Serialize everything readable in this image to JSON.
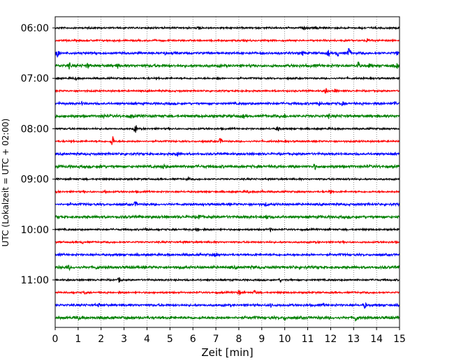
{
  "chart_data": {
    "type": "line",
    "title": "",
    "xlabel": "Zeit  [min]",
    "ylabel": "UTC (Lokalzeit = UTC + 02:00)",
    "xlim": [
      0,
      15
    ],
    "x_ticks": [
      0,
      1,
      2,
      3,
      4,
      5,
      6,
      7,
      8,
      9,
      10,
      11,
      12,
      13,
      14,
      15
    ],
    "x_tick_labels": [
      "0",
      "1",
      "2",
      "3",
      "4",
      "5",
      "6",
      "7",
      "8",
      "9",
      "10",
      "11",
      "12",
      "13",
      "14",
      "15"
    ],
    "y_tick_labels": [
      "06:00",
      "07:00",
      "08:00",
      "09:00",
      "10:00",
      "11:00"
    ],
    "vertical_grid": true,
    "grid_style": "dotted",
    "trace_interval_minutes": 15,
    "trace_colors": [
      "#000000",
      "#ff0000",
      "#0000ff",
      "#008000"
    ],
    "traces": [
      {
        "start": "06:00",
        "color": "#000000",
        "events": [
          [
            6.3,
            0.7
          ],
          [
            10.9,
            0.6
          ],
          [
            11.4,
            0.6
          ],
          [
            13.3,
            0.5
          ]
        ]
      },
      {
        "start": "06:15",
        "color": "#ff0000",
        "events": [
          [
            13.6,
            0.7
          ]
        ]
      },
      {
        "start": "06:30",
        "color": "#0000ff",
        "events": [
          [
            0.1,
            2.0
          ],
          [
            4.8,
            0.7
          ],
          [
            10.3,
            0.5
          ],
          [
            10.8,
            0.8
          ],
          [
            11.9,
            1.2
          ],
          [
            12.3,
            1.2
          ],
          [
            12.8,
            2.2
          ],
          [
            14.9,
            0.6
          ]
        ]
      },
      {
        "start": "06:45",
        "color": "#008000",
        "events": [
          [
            0.6,
            1.0
          ],
          [
            1.4,
            0.9
          ],
          [
            2.7,
            0.8
          ],
          [
            13.2,
            1.5
          ],
          [
            13.7,
            0.8
          ],
          [
            14.9,
            1.1
          ]
        ]
      },
      {
        "start": "07:00",
        "color": "#000000",
        "events": [
          [
            0.9,
            0.5
          ],
          [
            7.1,
            0.5
          ]
        ]
      },
      {
        "start": "07:15",
        "color": "#ff0000",
        "events": [
          [
            11.8,
            1.4
          ],
          [
            12.2,
            0.5
          ]
        ]
      },
      {
        "start": "07:30",
        "color": "#0000ff",
        "events": [
          [
            1.2,
            0.6
          ],
          [
            11.5,
            0.7
          ],
          [
            12.5,
            0.8
          ],
          [
            14.8,
            0.9
          ]
        ]
      },
      {
        "start": "07:45",
        "color": "#008000",
        "events": [
          [
            2.1,
            0.6
          ],
          [
            3.3,
            0.6
          ],
          [
            8.2,
            0.5
          ],
          [
            10.0,
            0.6
          ],
          [
            11.9,
            0.6
          ]
        ]
      },
      {
        "start": "08:00",
        "color": "#000000",
        "events": [
          [
            3.5,
            1.6
          ],
          [
            9.7,
            1.0
          ]
        ]
      },
      {
        "start": "08:15",
        "color": "#ff0000",
        "events": [
          [
            2.5,
            2.5
          ],
          [
            7.2,
            1.2
          ]
        ]
      },
      {
        "start": "08:30",
        "color": "#0000ff",
        "events": [
          [
            5.3,
            1.2
          ]
        ]
      },
      {
        "start": "08:45",
        "color": "#008000",
        "events": [
          [
            2.0,
            0.6
          ],
          [
            4.7,
            0.8
          ],
          [
            11.3,
            0.8
          ]
        ]
      },
      {
        "start": "09:00",
        "color": "#000000",
        "events": [
          [
            5.8,
            0.5
          ],
          [
            12.8,
            0.4
          ]
        ]
      },
      {
        "start": "09:15",
        "color": "#ff0000",
        "events": [
          [
            2.2,
            0.6
          ],
          [
            8.4,
            0.6
          ],
          [
            9.0,
            0.6
          ],
          [
            12.0,
            0.7
          ]
        ]
      },
      {
        "start": "09:30",
        "color": "#0000ff",
        "events": [
          [
            3.5,
            1.0
          ],
          [
            9.2,
            0.5
          ]
        ]
      },
      {
        "start": "09:45",
        "color": "#008000",
        "events": [
          [
            6.3,
            1.1
          ],
          [
            9.2,
            1.0
          ]
        ]
      },
      {
        "start": "10:00",
        "color": "#000000",
        "events": [
          [
            4.0,
            0.9
          ],
          [
            6.2,
            1.0
          ],
          [
            9.4,
            0.8
          ]
        ]
      },
      {
        "start": "10:15",
        "color": "#ff0000",
        "events": [
          [
            1.2,
            0.4
          ],
          [
            5.7,
            0.4
          ]
        ]
      },
      {
        "start": "10:30",
        "color": "#0000ff",
        "events": [
          [
            7.0,
            1.1
          ]
        ]
      },
      {
        "start": "10:45",
        "color": "#008000",
        "events": [
          [
            0.6,
            0.6
          ],
          [
            1.8,
            0.5
          ],
          [
            7.9,
            0.4
          ]
        ]
      },
      {
        "start": "11:00",
        "color": "#000000",
        "events": [
          [
            2.8,
            1.0
          ],
          [
            9.8,
            0.5
          ]
        ]
      },
      {
        "start": "11:15",
        "color": "#ff0000",
        "events": [
          [
            1.3,
            0.6
          ],
          [
            8.0,
            1.1
          ],
          [
            8.7,
            0.8
          ]
        ]
      },
      {
        "start": "11:30",
        "color": "#0000ff",
        "events": [
          [
            1.9,
            0.5
          ],
          [
            9.4,
            0.8
          ],
          [
            11.7,
            0.5
          ],
          [
            13.5,
            1.2
          ]
        ]
      },
      {
        "start": "11:45",
        "color": "#008000",
        "events": [
          [
            1.0,
            0.6
          ],
          [
            10.0,
            0.6
          ],
          [
            13.1,
            1.3
          ]
        ]
      }
    ]
  }
}
